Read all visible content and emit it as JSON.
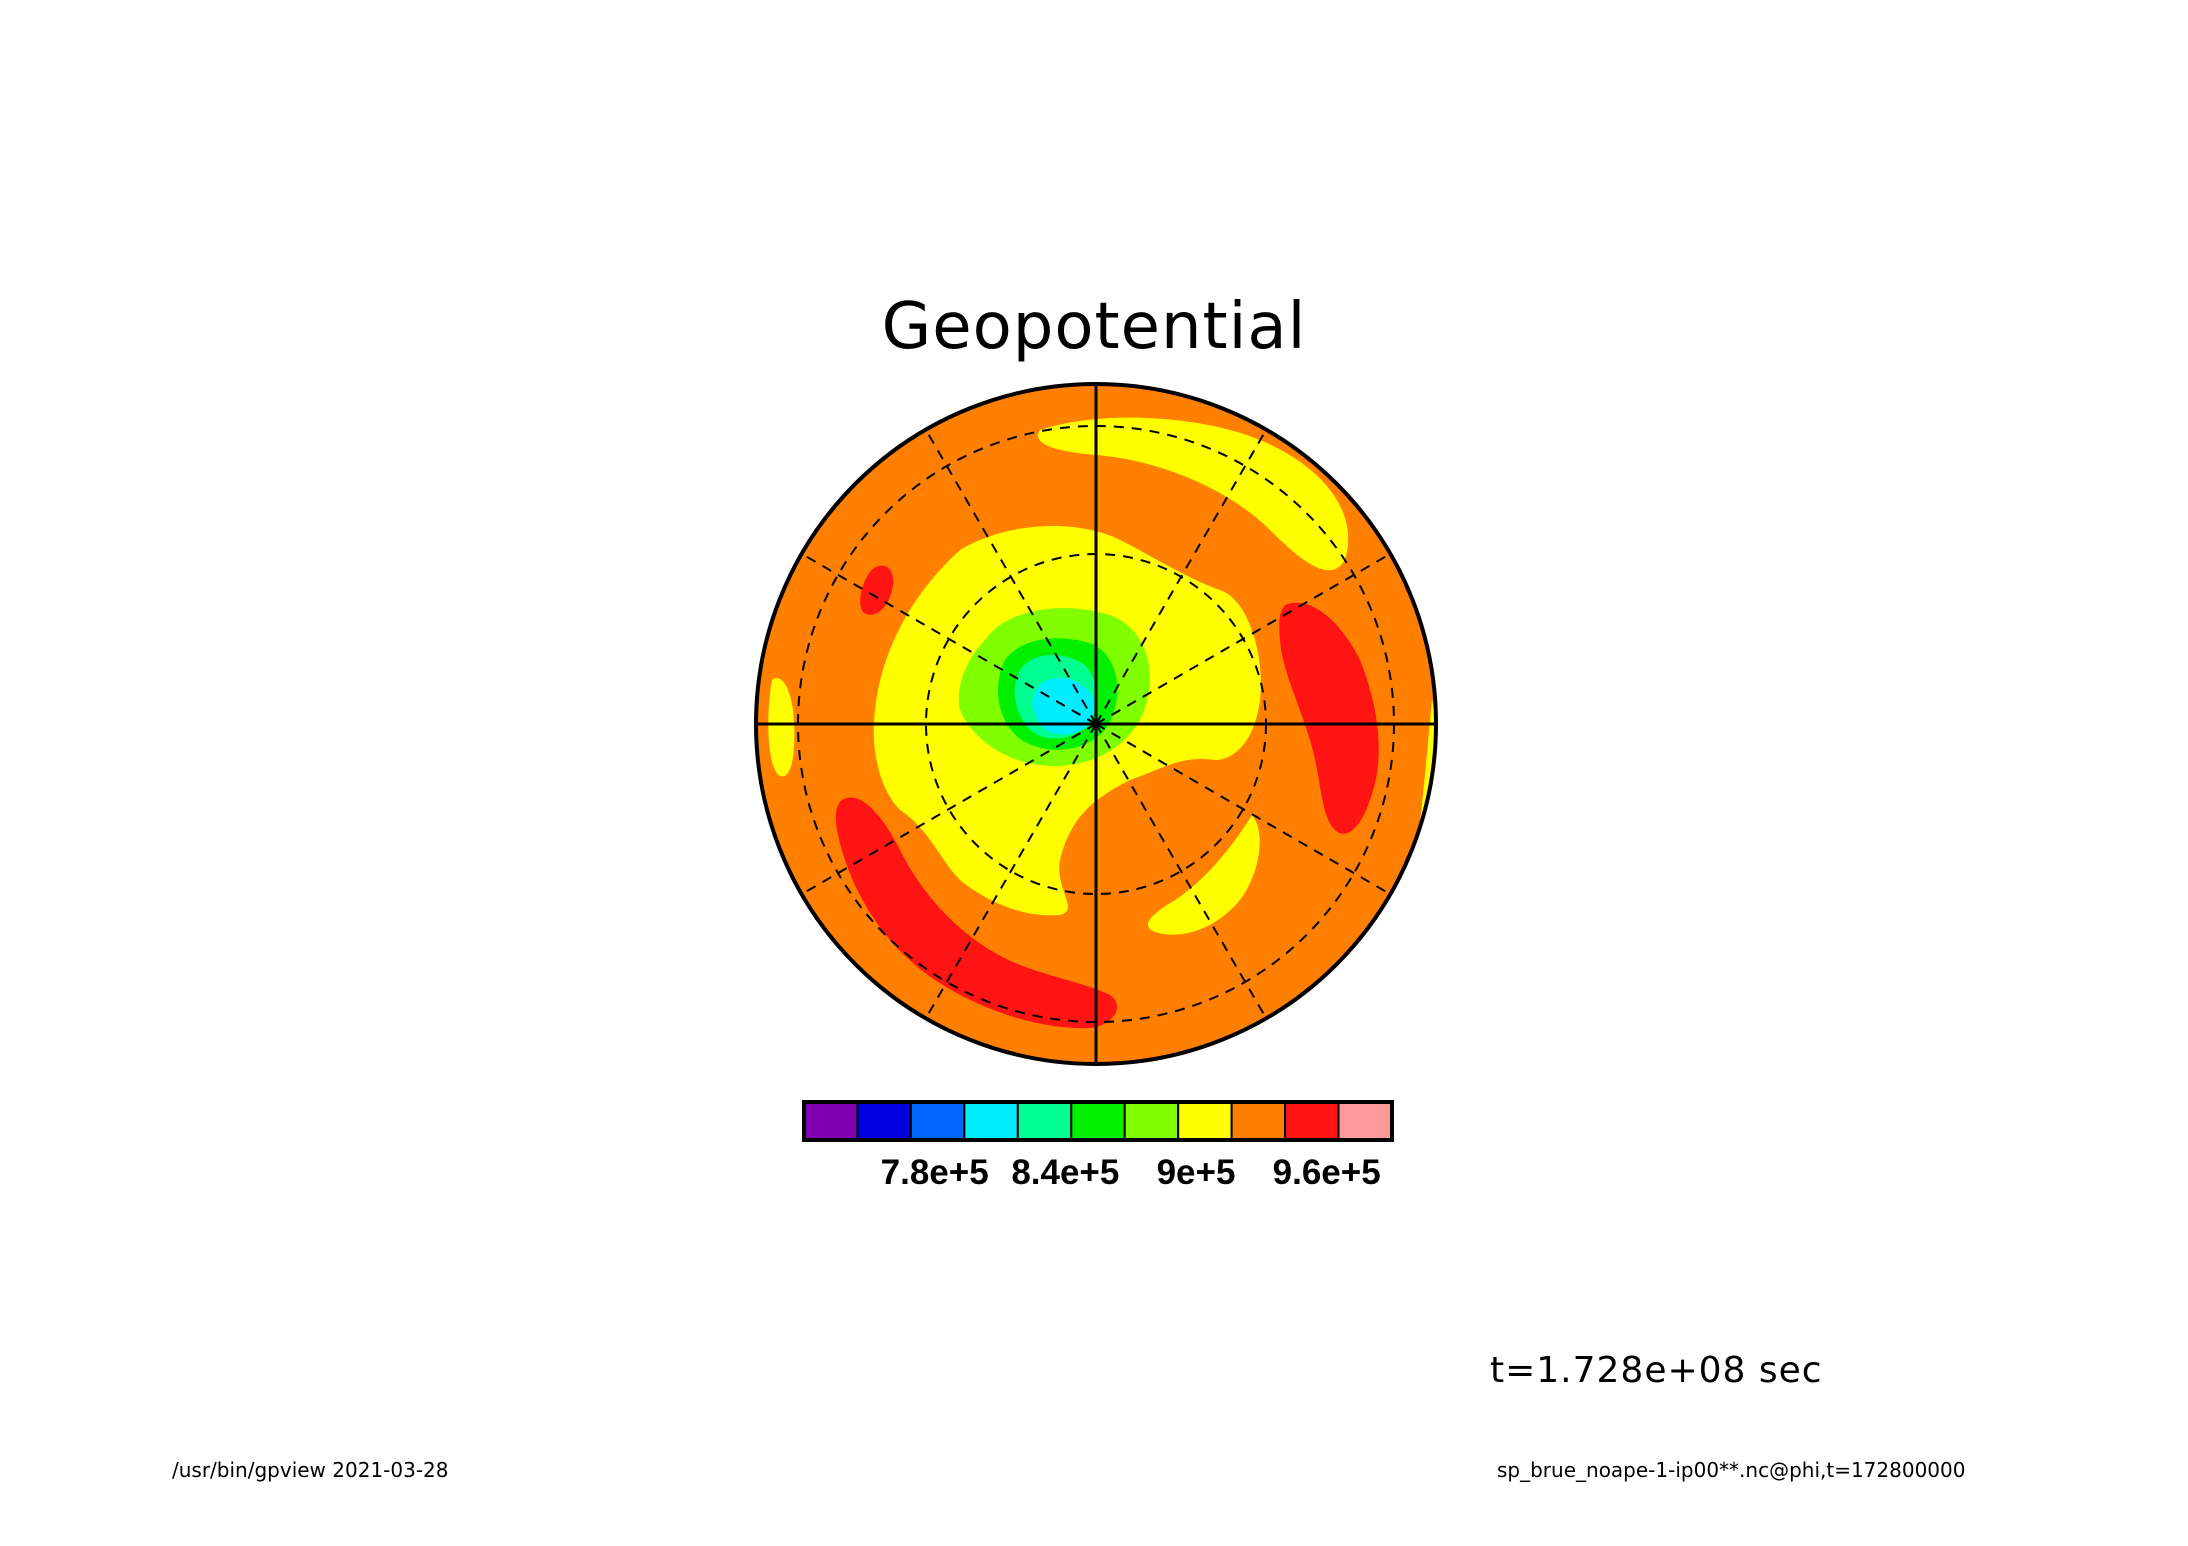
{
  "figure": {
    "title": "Geopotential",
    "time_label": "t=1.728e+08 sec",
    "footer_left": "/usr/bin/gpview  2021-03-28",
    "footer_right": "sp_brue_noape-1-ip00**.nc@phi,t=172800000"
  },
  "chart_data": {
    "type": "heatmap",
    "title": "Geopotential",
    "projection": "polar stereographic (hemisphere)",
    "background_level_color": "#ff7f00",
    "colorbar": {
      "colors": [
        "#7f00b0",
        "#0000e0",
        "#0066ff",
        "#00ecff",
        "#00ff90",
        "#00f000",
        "#80ff00",
        "#ffff00",
        "#ff7f00",
        "#ff1414",
        "#ff9a9a"
      ],
      "tick_labels": [
        "7.8e+5",
        "8.4e+5",
        "9e+5",
        "9.6e+5"
      ],
      "tick_values": [
        780000,
        840000,
        900000,
        960000
      ],
      "level_step": 30000,
      "range": [
        720000,
        990000
      ]
    },
    "features": [
      {
        "level": "cyan",
        "description": "low centered near pole"
      },
      {
        "level": "green",
        "description": "ring around polar low"
      },
      {
        "level": "yellow",
        "description": "band around low and spiral arms"
      },
      {
        "level": "red",
        "description": "high zones near outer edge"
      }
    ],
    "grid": {
      "parallels_dashed": true,
      "meridians_dashed": true
    }
  }
}
